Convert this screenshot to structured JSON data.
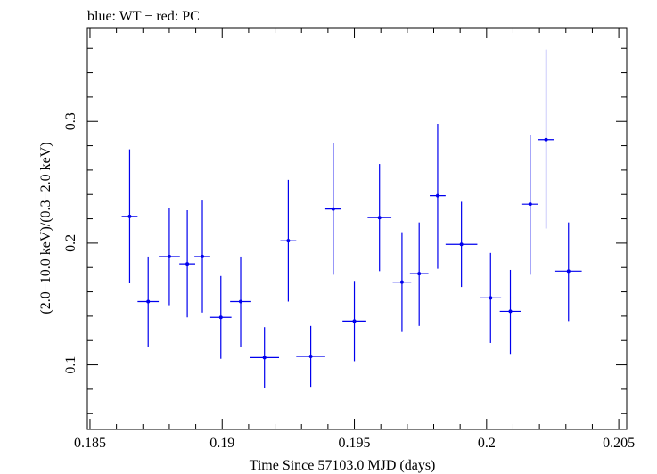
{
  "chart_data": {
    "type": "scatter",
    "title": "blue: WT − red: PC",
    "xlabel": "Time Since 57103.0 MJD (days)",
    "ylabel": "(2.0−10.0 keV)/(0.3−2.0 keV)",
    "xlim": [
      0.1849,
      0.2053
    ],
    "ylim": [
      0.047,
      0.377
    ],
    "x_ticks": [
      0.185,
      0.19,
      0.195,
      0.2,
      0.205
    ],
    "x_tick_labels": [
      "0.185",
      "0.19",
      "0.195",
      "0.2",
      "0.205"
    ],
    "y_ticks": [
      0.1,
      0.2,
      0.3
    ],
    "y_tick_labels": [
      "0.1",
      "0.2",
      "0.3"
    ],
    "grid": false,
    "legend": "none",
    "series": [
      {
        "color": "#0000ee",
        "points": [
          {
            "x": 0.1865,
            "xerr": 0.0003,
            "y": 0.222,
            "ylo": 0.167,
            "yhi": 0.277
          },
          {
            "x": 0.1872,
            "xerr": 0.0004,
            "y": 0.152,
            "ylo": 0.115,
            "yhi": 0.189
          },
          {
            "x": 0.188,
            "xerr": 0.0004,
            "y": 0.189,
            "ylo": 0.149,
            "yhi": 0.229
          },
          {
            "x": 0.18868,
            "xerr": 0.0003,
            "y": 0.183,
            "ylo": 0.139,
            "yhi": 0.227
          },
          {
            "x": 0.18925,
            "xerr": 0.0003,
            "y": 0.189,
            "ylo": 0.143,
            "yhi": 0.235
          },
          {
            "x": 0.18995,
            "xerr": 0.0004,
            "y": 0.139,
            "ylo": 0.105,
            "yhi": 0.173
          },
          {
            "x": 0.1907,
            "xerr": 0.0004,
            "y": 0.152,
            "ylo": 0.115,
            "yhi": 0.189
          },
          {
            "x": 0.1916,
            "xerr": 0.00055,
            "y": 0.106,
            "ylo": 0.081,
            "yhi": 0.131
          },
          {
            "x": 0.1925,
            "xerr": 0.0003,
            "y": 0.202,
            "ylo": 0.152,
            "yhi": 0.252
          },
          {
            "x": 0.19335,
            "xerr": 0.00055,
            "y": 0.107,
            "ylo": 0.082,
            "yhi": 0.132
          },
          {
            "x": 0.1942,
            "xerr": 0.0003,
            "y": 0.228,
            "ylo": 0.174,
            "yhi": 0.282
          },
          {
            "x": 0.195,
            "xerr": 0.00045,
            "y": 0.136,
            "ylo": 0.103,
            "yhi": 0.169
          },
          {
            "x": 0.19595,
            "xerr": 0.00045,
            "y": 0.221,
            "ylo": 0.177,
            "yhi": 0.265
          },
          {
            "x": 0.1968,
            "xerr": 0.00035,
            "y": 0.168,
            "ylo": 0.127,
            "yhi": 0.209
          },
          {
            "x": 0.19745,
            "xerr": 0.00035,
            "y": 0.175,
            "ylo": 0.132,
            "yhi": 0.217
          },
          {
            "x": 0.19815,
            "xerr": 0.0003,
            "y": 0.239,
            "ylo": 0.179,
            "yhi": 0.298
          },
          {
            "x": 0.19905,
            "xerr": 0.0006,
            "y": 0.199,
            "ylo": 0.164,
            "yhi": 0.234
          },
          {
            "x": 0.20015,
            "xerr": 0.0004,
            "y": 0.155,
            "ylo": 0.118,
            "yhi": 0.192
          },
          {
            "x": 0.2009,
            "xerr": 0.0004,
            "y": 0.144,
            "ylo": 0.109,
            "yhi": 0.178
          },
          {
            "x": 0.20165,
            "xerr": 0.0003,
            "y": 0.232,
            "ylo": 0.174,
            "yhi": 0.289
          },
          {
            "x": 0.20225,
            "xerr": 0.0003,
            "y": 0.285,
            "ylo": 0.212,
            "yhi": 0.359
          },
          {
            "x": 0.2031,
            "xerr": 0.0005,
            "y": 0.177,
            "ylo": 0.136,
            "yhi": 0.217
          }
        ]
      }
    ]
  }
}
